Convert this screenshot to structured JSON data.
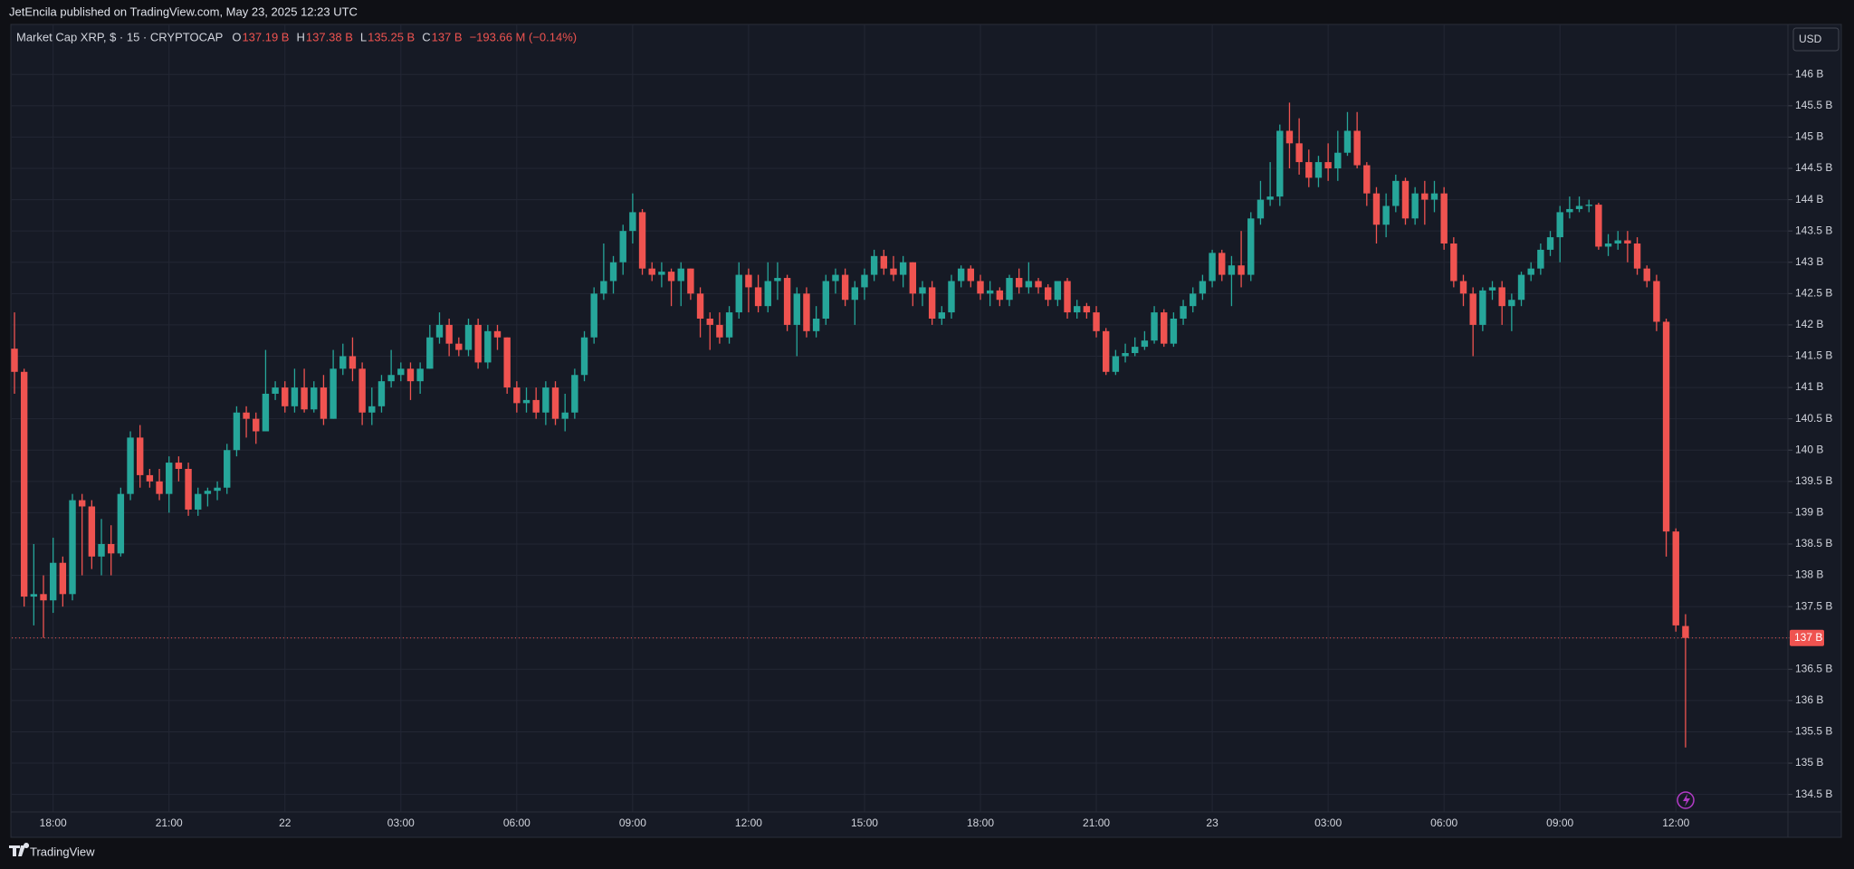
{
  "publisher_line": "JetEncila published on TradingView.com, May 23, 2025 12:23 UTC",
  "footer_brand": "TradingView",
  "chart_data": {
    "type": "candlestick",
    "title": "Market Cap XRP, $ · 15 · CRYPTOCAP",
    "legend": [
      {
        "label": "O",
        "value": "137.19 B"
      },
      {
        "label": "H",
        "value": "137.38 B"
      },
      {
        "label": "L",
        "value": "135.25 B"
      },
      {
        "label": "C",
        "value": "137 B"
      }
    ],
    "change": "−193.66 M (−0.14%)",
    "currency": "USD",
    "last_price_label": "137 B",
    "up_color": "#26a69a",
    "down_color": "#ef5350",
    "grid": true,
    "categories": [
      null,
      null,
      null,
      null,
      "18:00",
      null,
      null,
      null,
      null,
      null,
      null,
      null,
      null,
      null,
      null,
      null,
      "21:00",
      null,
      null,
      null,
      null,
      null,
      null,
      null,
      null,
      null,
      null,
      null,
      "22",
      null,
      null,
      null,
      null,
      null,
      null,
      null,
      null,
      null,
      null,
      null,
      "03:00",
      null,
      null,
      null,
      null,
      null,
      null,
      null,
      null,
      null,
      null,
      null,
      "06:00",
      null,
      null,
      null,
      null,
      null,
      null,
      null,
      null,
      null,
      null,
      null,
      "09:00",
      null,
      null,
      null,
      null,
      null,
      null,
      null,
      null,
      null,
      null,
      null,
      "12:00",
      null,
      null,
      null,
      null,
      null,
      null,
      null,
      null,
      null,
      null,
      null,
      "15:00",
      null,
      null,
      null,
      null,
      null,
      null,
      null,
      null,
      null,
      null,
      null,
      "18:00",
      null,
      null,
      null,
      null,
      null,
      null,
      null,
      null,
      null,
      null,
      null,
      "21:00",
      null,
      null,
      null,
      null,
      null,
      null,
      null,
      null,
      null,
      null,
      null,
      "23",
      null,
      null,
      null,
      null,
      null,
      null,
      null,
      null,
      null,
      null,
      null,
      "03:00",
      null,
      null,
      null,
      null,
      null,
      null,
      null,
      null,
      null,
      null,
      null,
      "06:00",
      null,
      null,
      null,
      null,
      null,
      null,
      null,
      null,
      null,
      null,
      null,
      "09:00",
      null,
      null,
      null,
      null,
      null,
      null,
      null,
      null,
      null,
      null,
      null,
      "12:00",
      null
    ],
    "open": [
      141.62,
      141.25,
      137.66,
      137.7,
      137.6,
      138.2,
      137.7,
      139.2,
      139.1,
      138.3,
      138.5,
      138.35,
      139.3,
      140.2,
      139.6,
      139.5,
      139.3,
      139.8,
      139.7,
      139.05,
      139.3,
      139.35,
      139.4,
      140,
      140.6,
      140.5,
      140.3,
      140.9,
      141,
      140.7,
      141,
      140.65,
      141,
      140.5,
      141.3,
      141.5,
      141.3,
      140.6,
      140.7,
      141.1,
      141.2,
      141.3,
      141.1,
      141.3,
      141.8,
      142,
      141.7,
      141.6,
      142,
      141.4,
      141.9,
      141.8,
      141,
      140.75,
      140.8,
      140.6,
      141,
      140.5,
      140.6,
      141.2,
      141.8,
      142.5,
      142.7,
      143,
      143.5,
      143.8,
      142.9,
      142.8,
      142.85,
      142.7,
      142.9,
      142.5,
      142.1,
      142,
      141.8,
      142.2,
      142.8,
      142.6,
      142.3,
      142.7,
      142.75,
      142,
      142.5,
      141.9,
      142.1,
      142.7,
      142.8,
      142.4,
      142.6,
      142.8,
      143.1,
      142.9,
      142.8,
      143,
      142.5,
      142.6,
      142.1,
      142.2,
      142.7,
      142.9,
      142.7,
      142.5,
      142.55,
      142.4,
      142.75,
      142.6,
      142.7,
      142.6,
      142.4,
      142.7,
      142.2,
      142.3,
      142.2,
      141.9,
      141.25,
      141.5,
      141.55,
      141.65,
      141.75,
      142.2,
      141.7,
      142.1,
      142.3,
      142.5,
      142.7,
      143.15,
      142.8,
      142.95,
      142.8,
      143.7,
      144,
      144.05,
      145.1,
      144.9,
      144.6,
      144.35,
      144.6,
      144.5,
      144.75,
      145.1,
      144.55,
      144.1,
      143.6,
      143.9,
      144.3,
      143.7,
      144.1,
      144,
      144.1,
      143.3,
      142.7,
      142.5,
      142,
      142.55,
      142.6,
      142.3,
      142.4,
      142.8,
      142.9,
      143.2,
      143.4,
      143.8,
      143.85,
      143.9,
      143.92,
      143.25,
      143.3,
      143.35,
      143.3,
      142.9,
      142.7,
      142.05,
      138.7,
      137.19
    ],
    "high": [
      142.2,
      141.3,
      138.5,
      138,
      138.6,
      138.3,
      139.3,
      139.3,
      139.2,
      138.9,
      138.8,
      139.4,
      140.3,
      140.4,
      139.7,
      139.7,
      139.9,
      139.9,
      139.8,
      139.4,
      139.4,
      139.5,
      140.1,
      140.7,
      140.7,
      140.6,
      141.6,
      141.1,
      141.1,
      141.3,
      141.3,
      141.1,
      141.2,
      141.6,
      141.7,
      141.8,
      141.4,
      141,
      141.2,
      141.6,
      141.4,
      141.4,
      141.4,
      142,
      142.2,
      142.1,
      141.8,
      142.1,
      142.1,
      142,
      142,
      141.8,
      141.1,
      141,
      141,
      141.1,
      141.1,
      140.9,
      141.3,
      141.9,
      142.6,
      143.3,
      143.1,
      143.6,
      144.1,
      143.85,
      143,
      143,
      142.9,
      143,
      142.9,
      142.6,
      142.2,
      142.2,
      142.3,
      143,
      142.9,
      142.8,
      143,
      143,
      142.8,
      142.6,
      142.6,
      142.3,
      142.8,
      142.9,
      142.9,
      142.7,
      142.9,
      143.2,
      143.2,
      143.1,
      143.1,
      143,
      142.7,
      142.7,
      142.3,
      142.8,
      142.95,
      142.95,
      142.8,
      142.7,
      142.6,
      142.8,
      142.9,
      143,
      142.75,
      142.65,
      142.7,
      142.75,
      142.4,
      142.35,
      142.3,
      141.95,
      141.6,
      141.7,
      141.8,
      141.9,
      142.3,
      142.25,
      142.2,
      142.4,
      142.6,
      142.8,
      143.2,
      143.2,
      143.1,
      143.5,
      143.8,
      144.3,
      144.6,
      145.2,
      145.55,
      145.3,
      144.8,
      144.7,
      144.9,
      145.1,
      145.4,
      145.4,
      144.6,
      144.2,
      144.1,
      144.4,
      144.35,
      144.2,
      144.3,
      144.3,
      144.2,
      143.4,
      142.8,
      142.6,
      142.6,
      142.7,
      142.7,
      142.5,
      142.85,
      143,
      143.3,
      143.5,
      143.9,
      144.05,
      144.05,
      144,
      143.95,
      143.45,
      143.5,
      143.5,
      143.4,
      142.95,
      142.8,
      142.1,
      138.75,
      137.38
    ],
    "low": [
      140.9,
      137.5,
      137.2,
      137.0,
      137.4,
      137.5,
      137.6,
      138.0,
      138.1,
      138.0,
      138.0,
      138.3,
      139.2,
      139.4,
      139.4,
      139.2,
      139.0,
      139.5,
      138.95,
      138.95,
      139.1,
      139.2,
      139.3,
      139.9,
      140.2,
      140.1,
      140.3,
      140.8,
      140.6,
      140.6,
      140.6,
      140.6,
      140.4,
      140.5,
      141.2,
      141.1,
      140.4,
      140.4,
      140.6,
      141,
      141.1,
      140.8,
      140.9,
      141.3,
      141.7,
      141.5,
      141.5,
      141.5,
      141.3,
      141.3,
      141.6,
      140.9,
      140.6,
      140.6,
      140.5,
      140.4,
      140.4,
      140.3,
      140.5,
      141.1,
      141.7,
      142.4,
      142.5,
      142.8,
      143.3,
      142.8,
      142.7,
      142.6,
      142.3,
      142.3,
      142.4,
      141.8,
      141.6,
      141.7,
      141.7,
      142.1,
      142.2,
      142.2,
      142.2,
      142.4,
      141.9,
      141.5,
      141.8,
      141.8,
      142,
      142.5,
      142.3,
      142,
      142.4,
      142.7,
      142.8,
      142.7,
      142.6,
      142.3,
      142.3,
      142,
      142,
      142.1,
      142.6,
      142.6,
      142.4,
      142.3,
      142.3,
      142.3,
      142.5,
      142.5,
      142.5,
      142.3,
      142.3,
      142.1,
      142.1,
      142.1,
      141.8,
      141.2,
      141.2,
      141.4,
      141.5,
      141.6,
      141.7,
      141.65,
      141.65,
      142,
      142.2,
      142.4,
      142.6,
      142.7,
      142.3,
      142.6,
      142.7,
      143.6,
      143.9,
      143.9,
      144.5,
      144.4,
      144.2,
      144.2,
      144.3,
      144.3,
      144.7,
      144.5,
      143.9,
      143.3,
      143.4,
      143.8,
      143.6,
      143.6,
      143.6,
      143.8,
      143.2,
      142.6,
      142.3,
      141.5,
      141.9,
      142.4,
      142,
      141.9,
      142.3,
      142.7,
      142.8,
      143.1,
      143,
      143.7,
      143.8,
      143.8,
      143.2,
      143.1,
      143.2,
      143,
      142.8,
      142.6,
      141.9,
      138.3,
      137.1,
      135.25
    ],
    "close": [
      141.25,
      137.66,
      137.7,
      137.6,
      138.2,
      137.7,
      139.2,
      139.1,
      138.3,
      138.5,
      138.35,
      139.3,
      140.2,
      139.6,
      139.5,
      139.3,
      139.8,
      139.7,
      139.05,
      139.3,
      139.35,
      139.4,
      140,
      140.6,
      140.5,
      140.3,
      140.9,
      141,
      140.7,
      141,
      140.65,
      141,
      140.5,
      141.3,
      141.5,
      141.3,
      140.6,
      140.7,
      141.1,
      141.2,
      141.3,
      141.1,
      141.3,
      141.8,
      142,
      141.7,
      141.6,
      142,
      141.4,
      141.9,
      141.8,
      141,
      140.75,
      140.8,
      140.6,
      141,
      140.5,
      140.6,
      141.2,
      141.8,
      142.5,
      142.7,
      143,
      143.5,
      143.8,
      142.9,
      142.8,
      142.85,
      142.7,
      142.9,
      142.5,
      142.1,
      142,
      141.8,
      142.2,
      142.8,
      142.6,
      142.3,
      142.7,
      142.75,
      142,
      142.5,
      141.9,
      142.1,
      142.7,
      142.8,
      142.4,
      142.6,
      142.8,
      143.1,
      142.9,
      142.8,
      143,
      142.5,
      142.6,
      142.1,
      142.2,
      142.7,
      142.9,
      142.7,
      142.5,
      142.55,
      142.4,
      142.75,
      142.6,
      142.7,
      142.6,
      142.4,
      142.7,
      142.2,
      142.3,
      142.2,
      141.9,
      141.25,
      141.5,
      141.55,
      141.65,
      141.75,
      142.2,
      141.7,
      142.1,
      142.3,
      142.5,
      142.7,
      143.15,
      142.8,
      142.95,
      142.8,
      143.7,
      144,
      144.05,
      145.1,
      144.9,
      144.6,
      144.35,
      144.6,
      144.5,
      144.75,
      145.1,
      144.55,
      144.1,
      143.6,
      143.9,
      144.3,
      143.7,
      144.1,
      144,
      144.1,
      143.3,
      142.7,
      142.5,
      142,
      142.55,
      142.6,
      142.3,
      142.4,
      142.8,
      142.9,
      143.2,
      143.4,
      143.8,
      143.85,
      143.9,
      143.92,
      143.25,
      143.3,
      143.35,
      143.3,
      142.9,
      142.7,
      142.05,
      138.7,
      137.2,
      137
    ],
    "ylim": [
      134.22,
      146.77
    ],
    "yticks": [
      {
        "value": 134.5,
        "label": "134.5 B"
      },
      {
        "value": 135,
        "label": "135 B"
      },
      {
        "value": 135.5,
        "label": "135.5 B"
      },
      {
        "value": 136,
        "label": "136 B"
      },
      {
        "value": 136.5,
        "label": "136.5 B"
      },
      {
        "value": 137,
        "label": "137 B"
      },
      {
        "value": 137.5,
        "label": "137.5 B"
      },
      {
        "value": 138,
        "label": "138 B"
      },
      {
        "value": 138.5,
        "label": "138.5 B"
      },
      {
        "value": 139,
        "label": "139 B"
      },
      {
        "value": 139.5,
        "label": "139.5 B"
      },
      {
        "value": 140,
        "label": "140 B"
      },
      {
        "value": 140.5,
        "label": "140.5 B"
      },
      {
        "value": 141,
        "label": "141 B"
      },
      {
        "value": 141.5,
        "label": "141.5 B"
      },
      {
        "value": 142,
        "label": "142 B"
      },
      {
        "value": 142.5,
        "label": "142.5 B"
      },
      {
        "value": 143,
        "label": "143 B"
      },
      {
        "value": 143.5,
        "label": "143.5 B"
      },
      {
        "value": 144,
        "label": "144 B"
      },
      {
        "value": 144.5,
        "label": "144.5 B"
      },
      {
        "value": 145,
        "label": "145 B"
      },
      {
        "value": 145.5,
        "label": "145.5 B"
      },
      {
        "value": 146,
        "label": "146 B"
      }
    ]
  }
}
